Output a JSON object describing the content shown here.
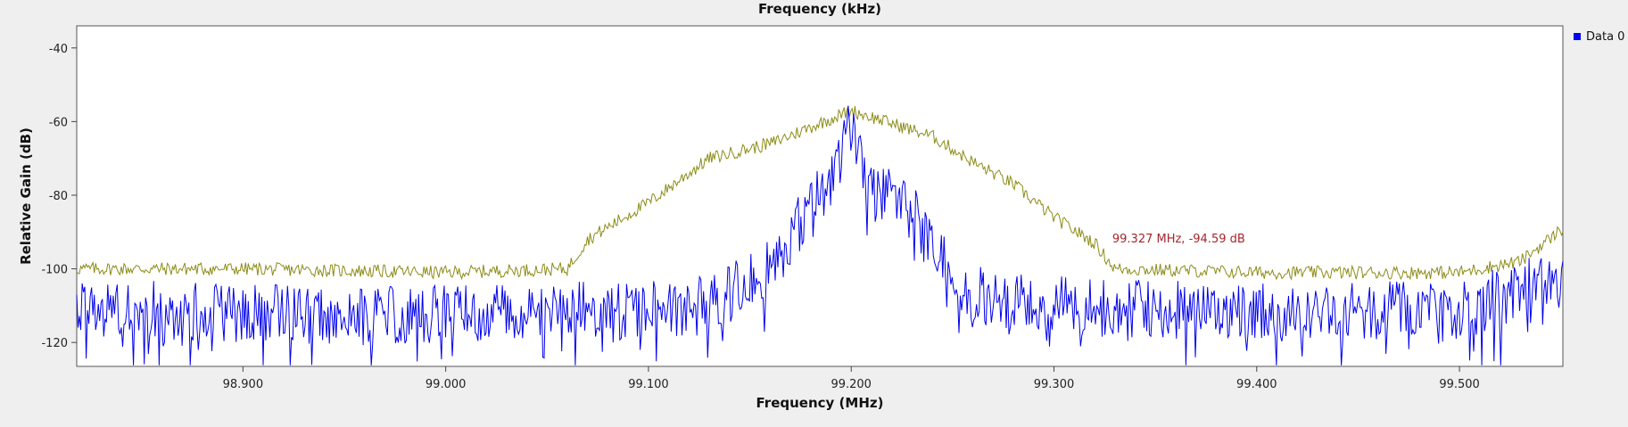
{
  "chart_data": {
    "type": "line",
    "title": "Frequency (kHz)",
    "xlabel": "Frequency (MHz)",
    "ylabel": "Relative Gain (dB)",
    "xlim": [
      98.818,
      99.551
    ],
    "ylim": [
      -126.5,
      -34
    ],
    "x_ticks": [
      98.9,
      99.0,
      99.1,
      99.2,
      99.3,
      99.4,
      99.5
    ],
    "x_tick_labels": [
      "98.900",
      "99.000",
      "99.100",
      "99.200",
      "99.300",
      "99.400",
      "99.500"
    ],
    "y_ticks": [
      -40,
      -60,
      -80,
      -100,
      -120
    ],
    "y_tick_labels": [
      "-40",
      "-60",
      "-80",
      "-100",
      "-120"
    ],
    "legend": {
      "placement": "top-right",
      "entries": [
        "Data 0"
      ]
    },
    "annotation": {
      "text": "99.327 MHz, -94.59 dB",
      "x": 99.327,
      "y": -94.59
    },
    "series": [
      {
        "name": "Data 0",
        "color": "#0000ee",
        "x": [
          98.818,
          98.85,
          98.9,
          98.95,
          99.0,
          99.05,
          99.1,
          99.13,
          99.16,
          99.18,
          99.19,
          99.2,
          99.21,
          99.22,
          99.24,
          99.26,
          99.3,
          99.35,
          99.4,
          99.45,
          99.5,
          99.551
        ],
        "y": [
          -112,
          -111,
          -112,
          -113,
          -112,
          -111,
          -111,
          -110,
          -100,
          -83,
          -76,
          -60,
          -78,
          -76,
          -94,
          -107,
          -110,
          -111,
          -111,
          -111,
          -112,
          -100
        ]
      },
      {
        "name": "",
        "color": "#8c8c18",
        "x": [
          98.818,
          98.9,
          99.0,
          99.06,
          99.07,
          99.1,
          99.13,
          99.16,
          99.2,
          99.24,
          99.26,
          99.28,
          99.3,
          99.32,
          99.33,
          99.4,
          99.5,
          99.53,
          99.551
        ],
        "y": [
          -100,
          -100,
          -101,
          -100,
          -92,
          -82,
          -70,
          -66,
          -57,
          -64,
          -71,
          -77,
          -86,
          -93,
          -100,
          -101,
          -101,
          -98,
          -89
        ]
      }
    ]
  }
}
